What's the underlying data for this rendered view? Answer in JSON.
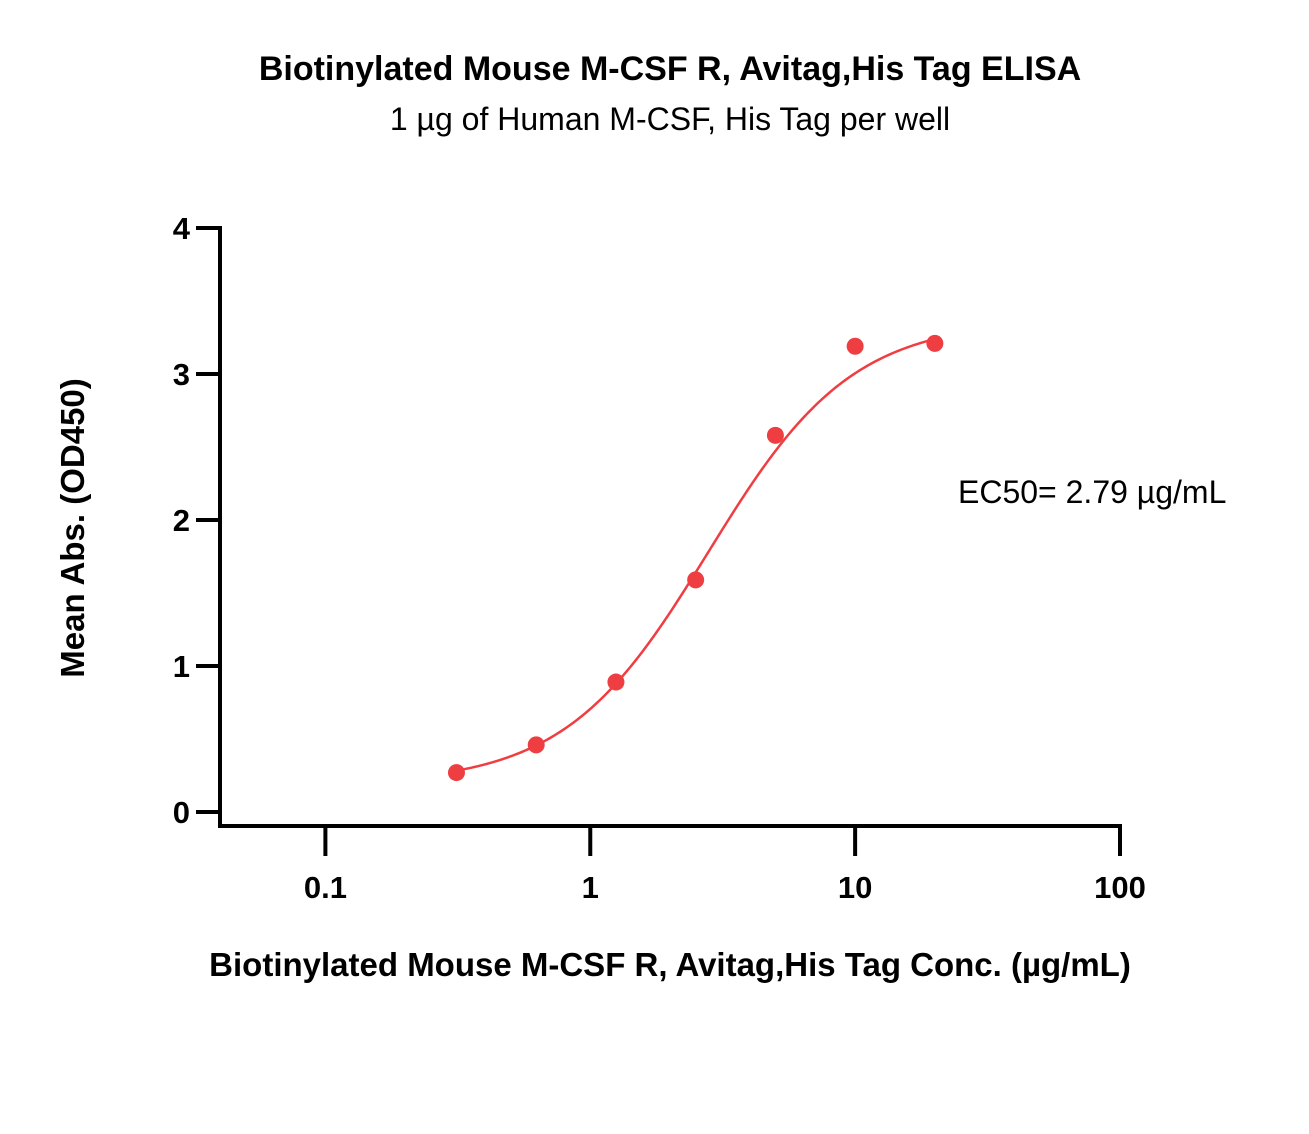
{
  "chart_data": {
    "type": "scatter",
    "title": "Biotinylated Mouse M-CSF R, Avitag,His Tag ELISA",
    "subtitle": "1 µg of Human M-CSF, His Tag per well",
    "xlabel": "Biotinylated Mouse M-CSF R, Avitag,His Tag Conc. (µg/mL)",
    "ylabel": "Mean Abs. (OD450)",
    "x_scale": "log",
    "xlim": [
      0.04,
      100
    ],
    "ylim": [
      0,
      4
    ],
    "x_ticks": [
      0.1,
      1,
      10,
      100
    ],
    "x_tick_labels": [
      "0.1",
      "1",
      "10",
      "100"
    ],
    "y_ticks": [
      0,
      1,
      2,
      3,
      4
    ],
    "y_tick_labels": [
      "0",
      "1",
      "2",
      "3",
      "4"
    ],
    "grid": false,
    "series": [
      {
        "color": "#ef3e42",
        "x": [
          0.3125,
          0.625,
          1.25,
          2.5,
          5,
          10,
          20
        ],
        "y": [
          0.27,
          0.46,
          0.89,
          1.59,
          2.58,
          3.19,
          3.21
        ]
      }
    ],
    "fit": {
      "model": "4PL",
      "bottom": 0.19,
      "top": 3.37,
      "ec50": 2.79,
      "hill": 1.6,
      "color": "#ef3e42"
    },
    "annotation": "EC50= 2.79 µg/mL"
  }
}
